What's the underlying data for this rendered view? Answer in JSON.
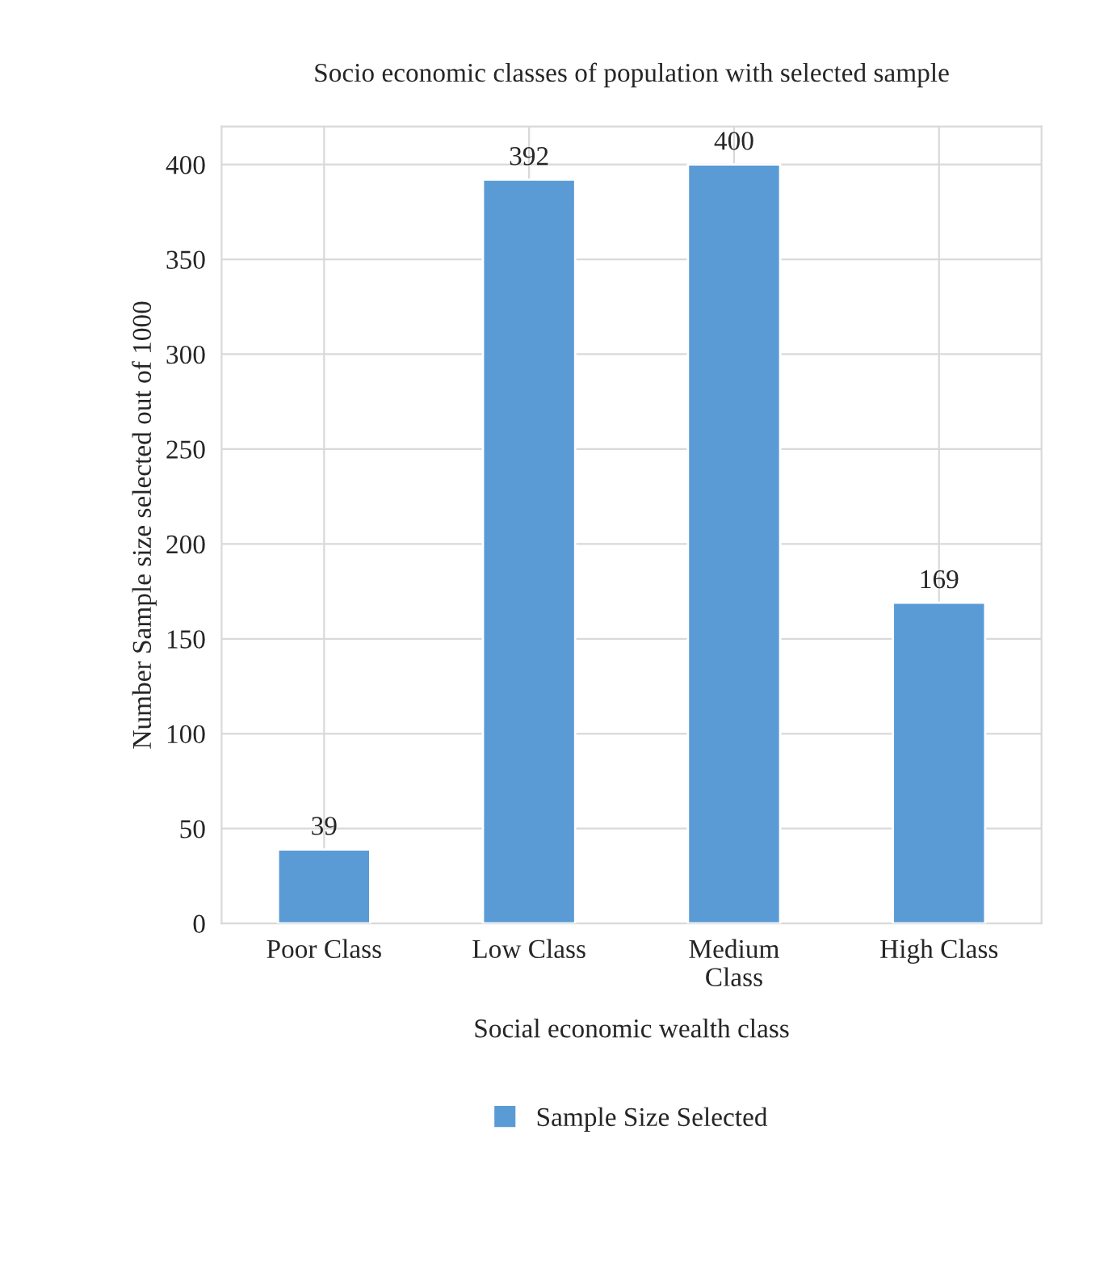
{
  "chart_data": {
    "type": "bar",
    "title": "Socio economic classes of population with selected sample",
    "xlabel": "Social economic wealth class",
    "ylabel": "Number Sample size selected out of 1000",
    "categories": [
      "Poor Class",
      "Low Class",
      "Medium\nClass",
      "High Class"
    ],
    "series": [
      {
        "name": "Sample Size Selected",
        "color": "#5b9bd5",
        "values": [
          39,
          392,
          400,
          169
        ]
      }
    ],
    "ylim": [
      0,
      420
    ],
    "yticks": [
      0,
      50,
      100,
      150,
      200,
      250,
      300,
      350,
      400
    ],
    "grid": true,
    "legend": "bottom",
    "data_labels": true
  }
}
